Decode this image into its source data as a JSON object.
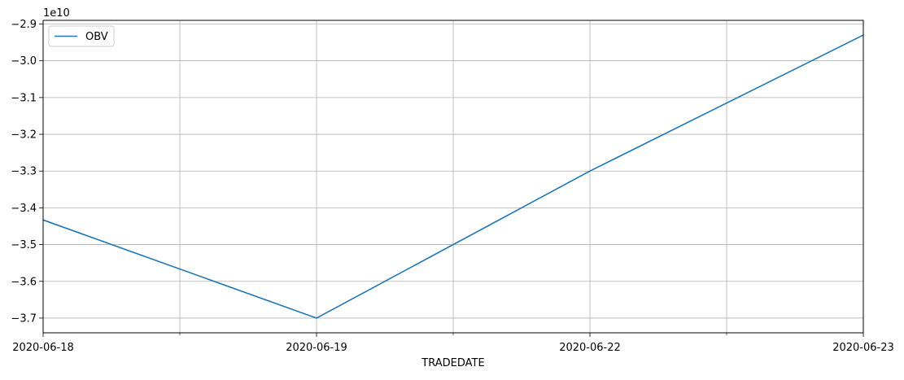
{
  "chart_data": {
    "type": "line",
    "title": "",
    "xlabel": "TRADEDATE",
    "ylabel": "",
    "y_offset_text": "1e10",
    "y_scale_multiplier": 10000000000,
    "categories": [
      "2020-06-18",
      "2020-06-19",
      "2020-06-22",
      "2020-06-23"
    ],
    "x_tick_labels": [
      "2020-06-18",
      "2020-06-19",
      "2020-06-22",
      "2020-06-23"
    ],
    "x_minor_ticks": true,
    "series": [
      {
        "name": "OBV",
        "color": "#1f77b4",
        "values": [
          -3.433,
          -3.7,
          -3.3,
          -2.93
        ]
      }
    ],
    "ylim": [
      -3.74,
      -2.89
    ],
    "y_ticks": [
      -3.7,
      -3.6,
      -3.5,
      -3.4,
      -3.3,
      -3.2,
      -3.1,
      -3.0,
      -2.9
    ],
    "y_tick_labels": [
      "−3.7",
      "−3.6",
      "−3.5",
      "−3.4",
      "−3.3",
      "−3.2",
      "−3.1",
      "−3.0",
      "−2.9"
    ],
    "grid": true,
    "grid_color": "#b0b0b0",
    "legend": {
      "position": "top-left",
      "entries": [
        "OBV"
      ]
    }
  }
}
